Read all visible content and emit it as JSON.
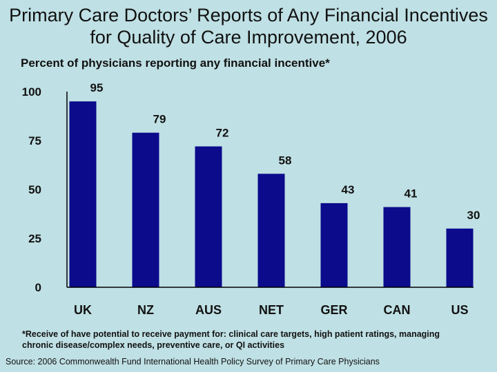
{
  "title": "Primary Care Doctors’ Reports of Any Financial Incentives for Quality of Care Improvement, 2006",
  "colors": {
    "background": "#bfe0e4",
    "bar": "#0b0b8c"
  },
  "chart_data": {
    "type": "bar",
    "title": "Primary Care Doctors’ Reports of Any Financial Incentives for Quality of Care Improvement, 2006",
    "ylabel": "Percent of physicians reporting any financial incentive*",
    "categories": [
      "UK",
      "NZ",
      "AUS",
      "NET",
      "GER",
      "CAN",
      "US"
    ],
    "values": [
      95,
      79,
      72,
      58,
      43,
      41,
      30
    ],
    "ylim": [
      0,
      100
    ],
    "yticks": [
      0,
      25,
      50,
      75,
      100
    ],
    "grid": false
  },
  "footnote": "*Receive of have potential to receive payment for: clinical care  targets, high patient ratings, managing chronic disease/complex needs, preventive care, or QI activities",
  "source": "Source: 2006 Commonwealth Fund International Health Policy Survey of Primary Care Physicians"
}
